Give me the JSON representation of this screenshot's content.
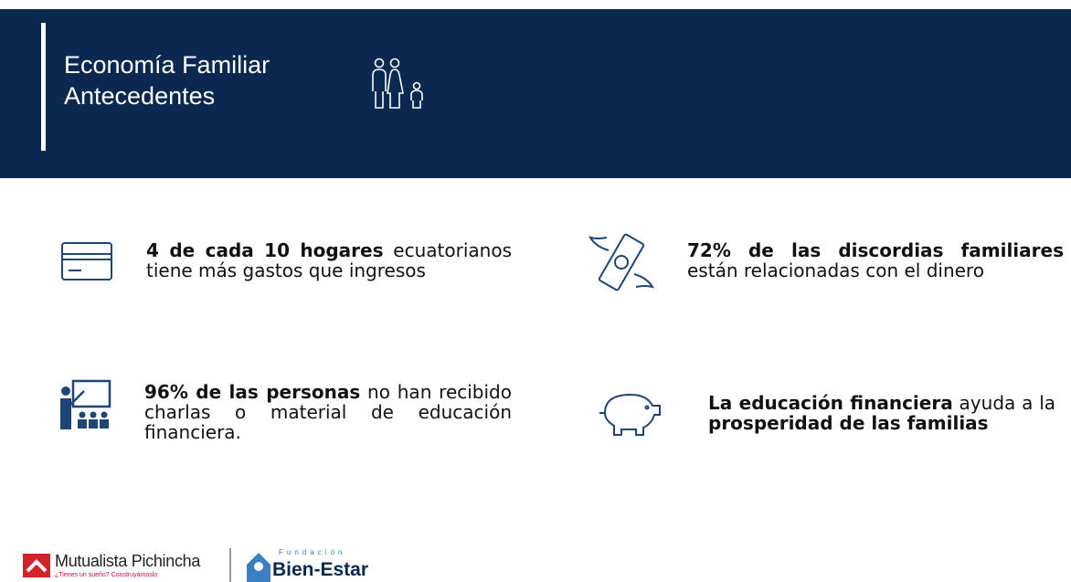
{
  "header": {
    "title": "Economía Familiar",
    "subtitle": "Antecedentes"
  },
  "items": [
    {
      "parts": [
        {
          "text": "4 de cada 10 hogares",
          "bold": true
        },
        {
          "text": " ecuatorianos tiene más gastos que ingresos",
          "bold": false
        }
      ]
    },
    {
      "parts": [
        {
          "text": "72% de las discordias familiares",
          "bold": true
        },
        {
          "text": " están relacionadas con el dinero",
          "bold": false
        }
      ]
    },
    {
      "parts": [
        {
          "text": "96% de las personas",
          "bold": true
        },
        {
          "text": " no han recibido charlas o material de educación financiera.",
          "bold": false
        }
      ]
    },
    {
      "parts": [
        {
          "text": "La educación financiera",
          "bold": true
        },
        {
          "text": " ayuda a la ",
          "bold": false
        },
        {
          "text": "prosperidad de las familias",
          "bold": true
        }
      ]
    }
  ],
  "footer": {
    "brand": "Mutualista Pichincha",
    "tagline": "¿Tienes un sueño? Construyámoslo",
    "foundation_label": "Fundación",
    "foundation_name": "Bien-Estar"
  }
}
